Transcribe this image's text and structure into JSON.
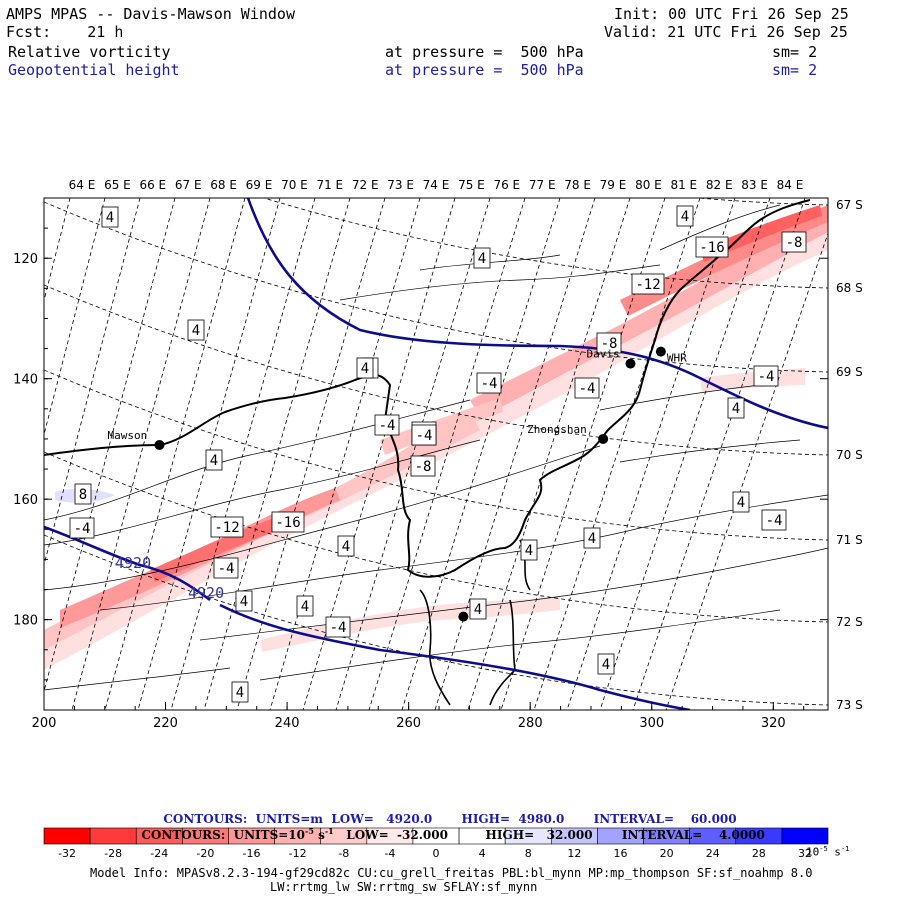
{
  "header": {
    "title": "AMPS MPAS -- Davis-Mawson Window",
    "forecast": "Fcst:    21 h",
    "init": "Init: 00 UTC Fri 26 Sep 25",
    "valid": "Valid: 21 UTC Fri 26 Sep 25",
    "field1": {
      "name": "Relative vorticity",
      "level": "at pressure =  500 hPa",
      "smooth": "sm= 2"
    },
    "field2": {
      "name": "Geopotential height",
      "level": "at pressure =  500 hPa",
      "smooth": "sm= 2"
    }
  },
  "map": {
    "top_lon_labels": [
      "64 E",
      "65 E",
      "66 E",
      "67 E",
      "68 E",
      "69 E",
      "70 E",
      "71 E",
      "72 E",
      "73 E",
      "74 E",
      "75 E",
      "76 E",
      "77 E",
      "78 E",
      "79 E",
      "80 E",
      "81 E",
      "82 E",
      "83 E",
      "84 E"
    ],
    "right_lat_labels": [
      "67 S",
      "68 S",
      "69 S",
      "70 S",
      "71 S",
      "72 S",
      "73 S"
    ],
    "x_ticks": [
      200,
      220,
      240,
      260,
      280,
      300,
      320
    ],
    "y_ticks": [
      120,
      140,
      160,
      180
    ],
    "x_range": [
      200,
      329
    ],
    "y_range": [
      110,
      195
    ],
    "stations": [
      {
        "name": "Mawson",
        "x": 219,
        "y": 151
      },
      {
        "name": "Zhongshan",
        "x": 292,
        "y": 150
      },
      {
        "name": "Davis",
        "x": 296.5,
        "y": 137.5
      },
      {
        "name": "WHR",
        "x": 301.5,
        "y": 135.5
      },
      {
        "name": "",
        "x": 269,
        "y": 179.5
      }
    ],
    "height_contour_labels": [
      "4920",
      "4920"
    ],
    "vorticity_labels": [
      "4",
      "4",
      "4",
      "4",
      "4",
      "4",
      "4",
      "-4",
      "4",
      "4",
      "4",
      "4",
      "4",
      "4",
      "4",
      "4",
      "4",
      "-4",
      "-4",
      "-4",
      "-4",
      "-4",
      "-4",
      "-4",
      "-8",
      "-8",
      "-8",
      "-8",
      "8",
      "-12",
      "-12",
      "-16",
      "-16",
      "-4",
      "-4",
      "4"
    ]
  },
  "legend": {
    "line1": {
      "label": "CONTOURS:  UNITS=m  LOW=   4920.0",
      "high": "HIGH=  4980.0",
      "interval": "INTERVAL=    60.000"
    },
    "line2": {
      "label": "CONTOURS:  UNITS=10",
      "exp": "-5",
      "unit_s": " s",
      "exp2": "-1",
      "low": "   LOW=  -32.000",
      "high": "HIGH=   32.000",
      "interval": "INTERVAL=    4.0000"
    },
    "colorbar_labels": [
      "-32",
      "-28",
      "-24",
      "-20",
      "-16",
      "-12",
      "-8",
      "-4",
      "0",
      "4",
      "8",
      "12",
      "16",
      "20",
      "24",
      "28",
      "32"
    ],
    "colorbar_colors": [
      "#ff0000",
      "#ff3a3a",
      "#ff5a5a",
      "#ff7878",
      "#ff9696",
      "#ffb0b0",
      "#ffcccc",
      "#ffe8e8",
      "#ffffff",
      "#ffffff",
      "#e6e6ff",
      "#c4c4ff",
      "#a2a2ff",
      "#8080ff",
      "#5e5eff",
      "#3a3aff",
      "#0000ff"
    ],
    "units": "10",
    "units_exp": "-5",
    "units_s": " s",
    "units_exp2": "-1"
  },
  "footer": {
    "model_info": "Model Info: MPASv8.2.3-194-gf29cd82c CU:cu_grell_freitas PBL:bl_mynn MP:mp_thompson SF:sf_noahmp 8.0",
    "model_info2": "LW:rrtmg_lw SW:rrtmg_sw SFLAY:sf_mynn"
  }
}
